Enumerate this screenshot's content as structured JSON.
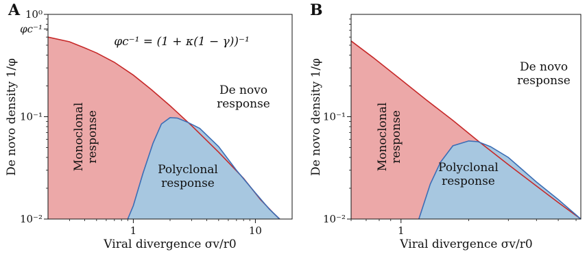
{
  "chart_data": [
    {
      "panel": "A",
      "type": "area",
      "xlabel": "Viral divergence σv/r0",
      "ylabel": "De novo density 1/φ",
      "xscale": "log",
      "yscale": "log",
      "xlim": [
        0.2,
        20
      ],
      "ylim": [
        0.01,
        1
      ],
      "xticks": [
        {
          "value": 1,
          "label": "1"
        },
        {
          "value": 10,
          "label": "10"
        }
      ],
      "yticks": [
        {
          "value": 1,
          "label": "10⁰"
        },
        {
          "value": 0.1,
          "label": "10⁻¹"
        },
        {
          "value": 0.01,
          "label": "10⁻²"
        }
      ],
      "phi_tick_label": "φc⁻¹",
      "phi_tick_value": 0.72,
      "annotation": "φc⁻¹ = (1 + κ(1 − γ))⁻¹",
      "region_labels": {
        "denovo": [
          "De novo",
          "response"
        ],
        "monoclonal": [
          "Monoclonal",
          "response"
        ],
        "polyclonal": [
          "Polyclonal",
          "response"
        ]
      },
      "series": [
        {
          "name": "Monoclonal response",
          "color": "#c62828",
          "fill": "#eca8a8",
          "x": [
            0.2,
            0.3,
            0.4,
            0.5,
            0.7,
            1.0,
            1.4,
            2.0,
            3.0,
            5.0,
            8.0,
            11.0,
            14.0,
            15.8
          ],
          "y": [
            0.6,
            0.54,
            0.47,
            0.42,
            0.34,
            0.255,
            0.185,
            0.128,
            0.082,
            0.045,
            0.025,
            0.0155,
            0.0115,
            0.01
          ]
        },
        {
          "name": "Polyclonal response",
          "color": "#3a6db5",
          "fill": "#a7c7e0",
          "x": [
            0.9,
            1.0,
            1.2,
            1.45,
            1.7,
            2.0,
            2.3,
            2.8,
            3.5,
            5.0,
            7.0,
            10.0,
            13.0,
            15.8
          ],
          "y": [
            0.01,
            0.0135,
            0.028,
            0.055,
            0.085,
            0.098,
            0.097,
            0.088,
            0.077,
            0.051,
            0.03,
            0.018,
            0.0125,
            0.01
          ]
        }
      ]
    },
    {
      "panel": "B",
      "type": "area",
      "xlabel": "Viral divergence σv/r0",
      "ylabel": "De novo density 1/φ",
      "xscale": "log",
      "yscale": "log",
      "xlim": [
        0.6,
        6.3
      ],
      "ylim": [
        0.01,
        1
      ],
      "xticks": [
        {
          "value": 1,
          "label": "1"
        }
      ],
      "yticks": [
        {
          "value": 0.1,
          "label": "10⁻¹"
        },
        {
          "value": 0.01,
          "label": "10⁻²"
        }
      ],
      "region_labels": {
        "denovo": [
          "De novo",
          "response"
        ],
        "monoclonal": [
          "Monoclonal",
          "response"
        ],
        "polyclonal": [
          "Polyclonal",
          "response"
        ]
      },
      "series": [
        {
          "name": "Monoclonal response",
          "color": "#c62828",
          "fill": "#eca8a8",
          "x": [
            0.6,
            0.75,
            1.0,
            1.3,
            1.7,
            2.2,
            3.0,
            4.0,
            5.0,
            6.3
          ],
          "y": [
            0.55,
            0.38,
            0.23,
            0.145,
            0.092,
            0.058,
            0.034,
            0.021,
            0.0145,
            0.01
          ]
        },
        {
          "name": "Polyclonal response",
          "color": "#3a6db5",
          "fill": "#a7c7e0",
          "x": [
            1.2,
            1.35,
            1.5,
            1.7,
            2.0,
            2.2,
            2.5,
            3.0,
            4.0,
            5.0,
            6.3
          ],
          "y": [
            0.01,
            0.022,
            0.036,
            0.052,
            0.058,
            0.057,
            0.051,
            0.04,
            0.023,
            0.0155,
            0.01
          ]
        }
      ]
    }
  ]
}
